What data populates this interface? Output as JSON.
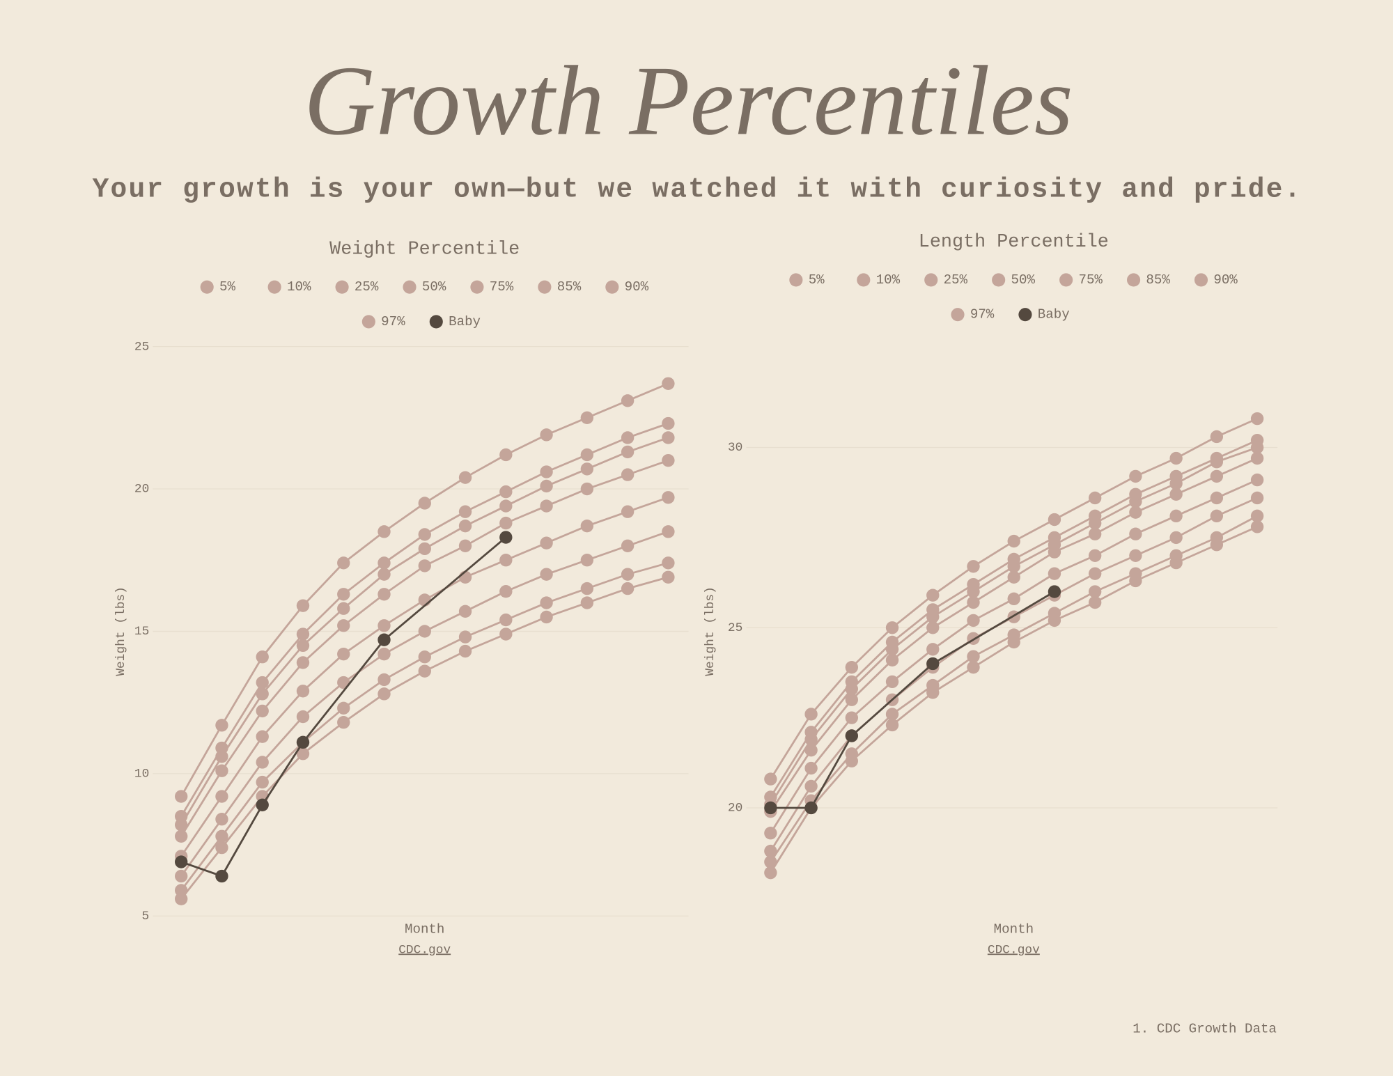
{
  "title": "Growth Percentiles",
  "subtitle": "Your growth is your own—but we watched it with curiosity and pride.",
  "footnote": "1. CDC Growth Data",
  "chart_data": [
    {
      "type": "line",
      "title": "Weight Percentile",
      "x_label": "Month",
      "y_label": "Weight (lbs)",
      "source": "CDC.gov",
      "x": [
        0,
        1,
        2,
        3,
        4,
        5,
        6,
        7,
        8,
        9,
        10,
        11,
        12
      ],
      "xlim": [
        -0.7,
        12.5
      ],
      "ylim": [
        5,
        25
      ],
      "yticks": [
        5,
        10,
        15,
        20,
        25
      ],
      "grid": true,
      "series": [
        {
          "name": "5%",
          "color": "#c4a59a",
          "values": [
            5.6,
            7.4,
            9.2,
            10.7,
            11.8,
            12.8,
            13.6,
            14.3,
            14.9,
            15.5,
            16.0,
            16.5,
            16.9
          ]
        },
        {
          "name": "10%",
          "color": "#c4a59a",
          "values": [
            5.9,
            7.8,
            9.7,
            11.1,
            12.3,
            13.3,
            14.1,
            14.8,
            15.4,
            16.0,
            16.5,
            17.0,
            17.4
          ]
        },
        {
          "name": "25%",
          "color": "#c4a59a",
          "values": [
            6.4,
            8.4,
            10.4,
            12.0,
            13.2,
            14.2,
            15.0,
            15.7,
            16.4,
            17.0,
            17.5,
            18.0,
            18.5
          ]
        },
        {
          "name": "50%",
          "color": "#c4a59a",
          "values": [
            7.1,
            9.2,
            11.3,
            12.9,
            14.2,
            15.2,
            16.1,
            16.9,
            17.5,
            18.1,
            18.7,
            19.2,
            19.7
          ]
        },
        {
          "name": "75%",
          "color": "#c4a59a",
          "values": [
            7.8,
            10.1,
            12.2,
            13.9,
            15.2,
            16.3,
            17.3,
            18.0,
            18.8,
            19.4,
            20.0,
            20.5,
            21.0
          ]
        },
        {
          "name": "85%",
          "color": "#c4a59a",
          "values": [
            8.2,
            10.6,
            12.8,
            14.5,
            15.8,
            17.0,
            17.9,
            18.7,
            19.4,
            20.1,
            20.7,
            21.3,
            21.8
          ]
        },
        {
          "name": "90%",
          "color": "#c4a59a",
          "values": [
            8.5,
            10.9,
            13.2,
            14.9,
            16.3,
            17.4,
            18.4,
            19.2,
            19.9,
            20.6,
            21.2,
            21.8,
            22.3
          ]
        },
        {
          "name": "97%",
          "color": "#c4a59a",
          "values": [
            9.2,
            11.7,
            14.1,
            15.9,
            17.4,
            18.5,
            19.5,
            20.4,
            21.2,
            21.9,
            22.5,
            23.1,
            23.7
          ]
        },
        {
          "name": "Baby",
          "color": "#54493f",
          "x": [
            0,
            1,
            2,
            3,
            5,
            8
          ],
          "values": [
            6.9,
            6.4,
            8.9,
            11.1,
            14.7,
            18.3
          ]
        }
      ]
    },
    {
      "type": "line",
      "title": "Length Percentile",
      "x_label": "Month",
      "y_label": "Weight (lbs)",
      "source": "CDC.gov",
      "x": [
        0,
        1,
        2,
        3,
        4,
        5,
        6,
        7,
        8,
        9,
        10,
        11,
        12
      ],
      "xlim": [
        -0.6,
        12.5
      ],
      "ylim": [
        17,
        32.8
      ],
      "yticks": [
        20,
        25,
        30
      ],
      "grid": true,
      "series": [
        {
          "name": "5%",
          "color": "#c4a59a",
          "values": [
            18.2,
            20.0,
            21.3,
            22.3,
            23.2,
            23.9,
            24.6,
            25.2,
            25.7,
            26.3,
            26.8,
            27.3,
            27.8
          ]
        },
        {
          "name": "10%",
          "color": "#c4a59a",
          "values": [
            18.5,
            20.2,
            21.5,
            22.6,
            23.4,
            24.2,
            24.8,
            25.4,
            26.0,
            26.5,
            27.0,
            27.5,
            28.1
          ]
        },
        {
          "name": "25%",
          "color": "#c4a59a",
          "values": [
            18.8,
            20.6,
            22.0,
            23.0,
            23.9,
            24.7,
            25.3,
            25.9,
            26.5,
            27.0,
            27.5,
            28.1,
            28.6
          ]
        },
        {
          "name": "50%",
          "color": "#c4a59a",
          "values": [
            19.3,
            21.1,
            22.5,
            23.5,
            24.4,
            25.2,
            25.8,
            26.5,
            27.0,
            27.6,
            28.1,
            28.6,
            29.1
          ]
        },
        {
          "name": "75%",
          "color": "#c4a59a",
          "values": [
            19.9,
            21.6,
            23.0,
            24.1,
            25.0,
            25.7,
            26.4,
            27.1,
            27.6,
            28.2,
            28.7,
            29.2,
            29.7
          ]
        },
        {
          "name": "85%",
          "color": "#c4a59a",
          "values": [
            20.1,
            21.9,
            23.3,
            24.4,
            25.3,
            26.0,
            26.7,
            27.3,
            27.9,
            28.5,
            29.0,
            29.6,
            30.0
          ]
        },
        {
          "name": "90%",
          "color": "#c4a59a",
          "values": [
            20.3,
            22.1,
            23.5,
            24.6,
            25.5,
            26.2,
            26.9,
            27.5,
            28.1,
            28.7,
            29.2,
            29.7,
            30.2
          ]
        },
        {
          "name": "97%",
          "color": "#c4a59a",
          "values": [
            20.8,
            22.6,
            23.9,
            25.0,
            25.9,
            26.7,
            27.4,
            28.0,
            28.6,
            29.2,
            29.7,
            30.3,
            30.8
          ]
        },
        {
          "name": "Baby",
          "color": "#54493f",
          "x": [
            0,
            1,
            2,
            4,
            7
          ],
          "values": [
            20.0,
            20.0,
            22.0,
            24.0,
            26.0
          ]
        }
      ]
    }
  ]
}
